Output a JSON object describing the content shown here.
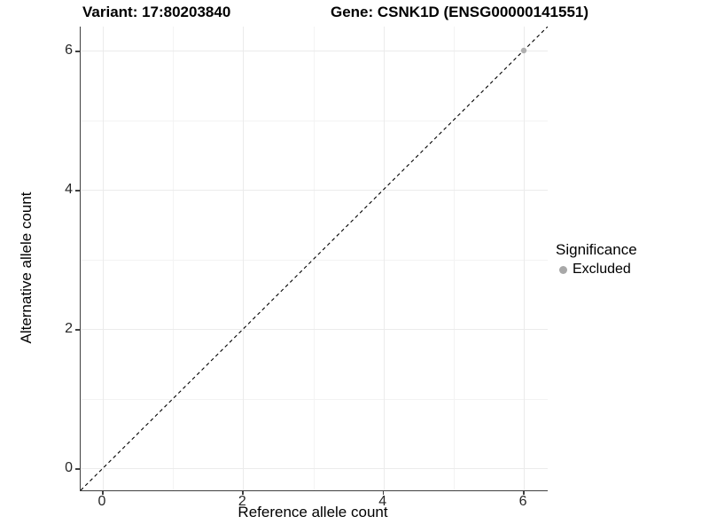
{
  "titles": {
    "variant": "Variant: 17:80203840",
    "gene": "Gene: CSNK1D (ENSG00000141551)"
  },
  "chart_data": {
    "type": "scatter",
    "title": "Variant: 17:80203840 — Gene: CSNK1D (ENSG00000141551)",
    "xlabel": "Reference allele count",
    "ylabel": "Alternative allele count",
    "x_ticks": [
      0,
      2,
      4,
      6
    ],
    "y_ticks": [
      0,
      2,
      4,
      6
    ],
    "x_minor": [
      1,
      3,
      5
    ],
    "y_minor": [
      1,
      3,
      5
    ],
    "xlim": [
      -0.32,
      6.34
    ],
    "ylim": [
      -0.32,
      6.34
    ],
    "grid": "major and minor, light gray on white",
    "reference_line": {
      "style": "dashed",
      "color": "#000000",
      "equation": "y = x"
    },
    "series": [
      {
        "name": "Excluded",
        "color": "#b0b0b0",
        "points": [
          {
            "x": 6,
            "y": 6
          }
        ]
      }
    ],
    "legend": {
      "title": "Significance",
      "position": "right",
      "items": [
        {
          "label": "Excluded",
          "color": "#a8a8a8"
        }
      ]
    }
  },
  "colors": {
    "background": "#ffffff",
    "grid_major": "#ebebeb",
    "grid_minor": "#f3f3f3",
    "axis_line": "#404040",
    "tick_label": "#262626",
    "point_excluded": "#b0b0b0"
  }
}
